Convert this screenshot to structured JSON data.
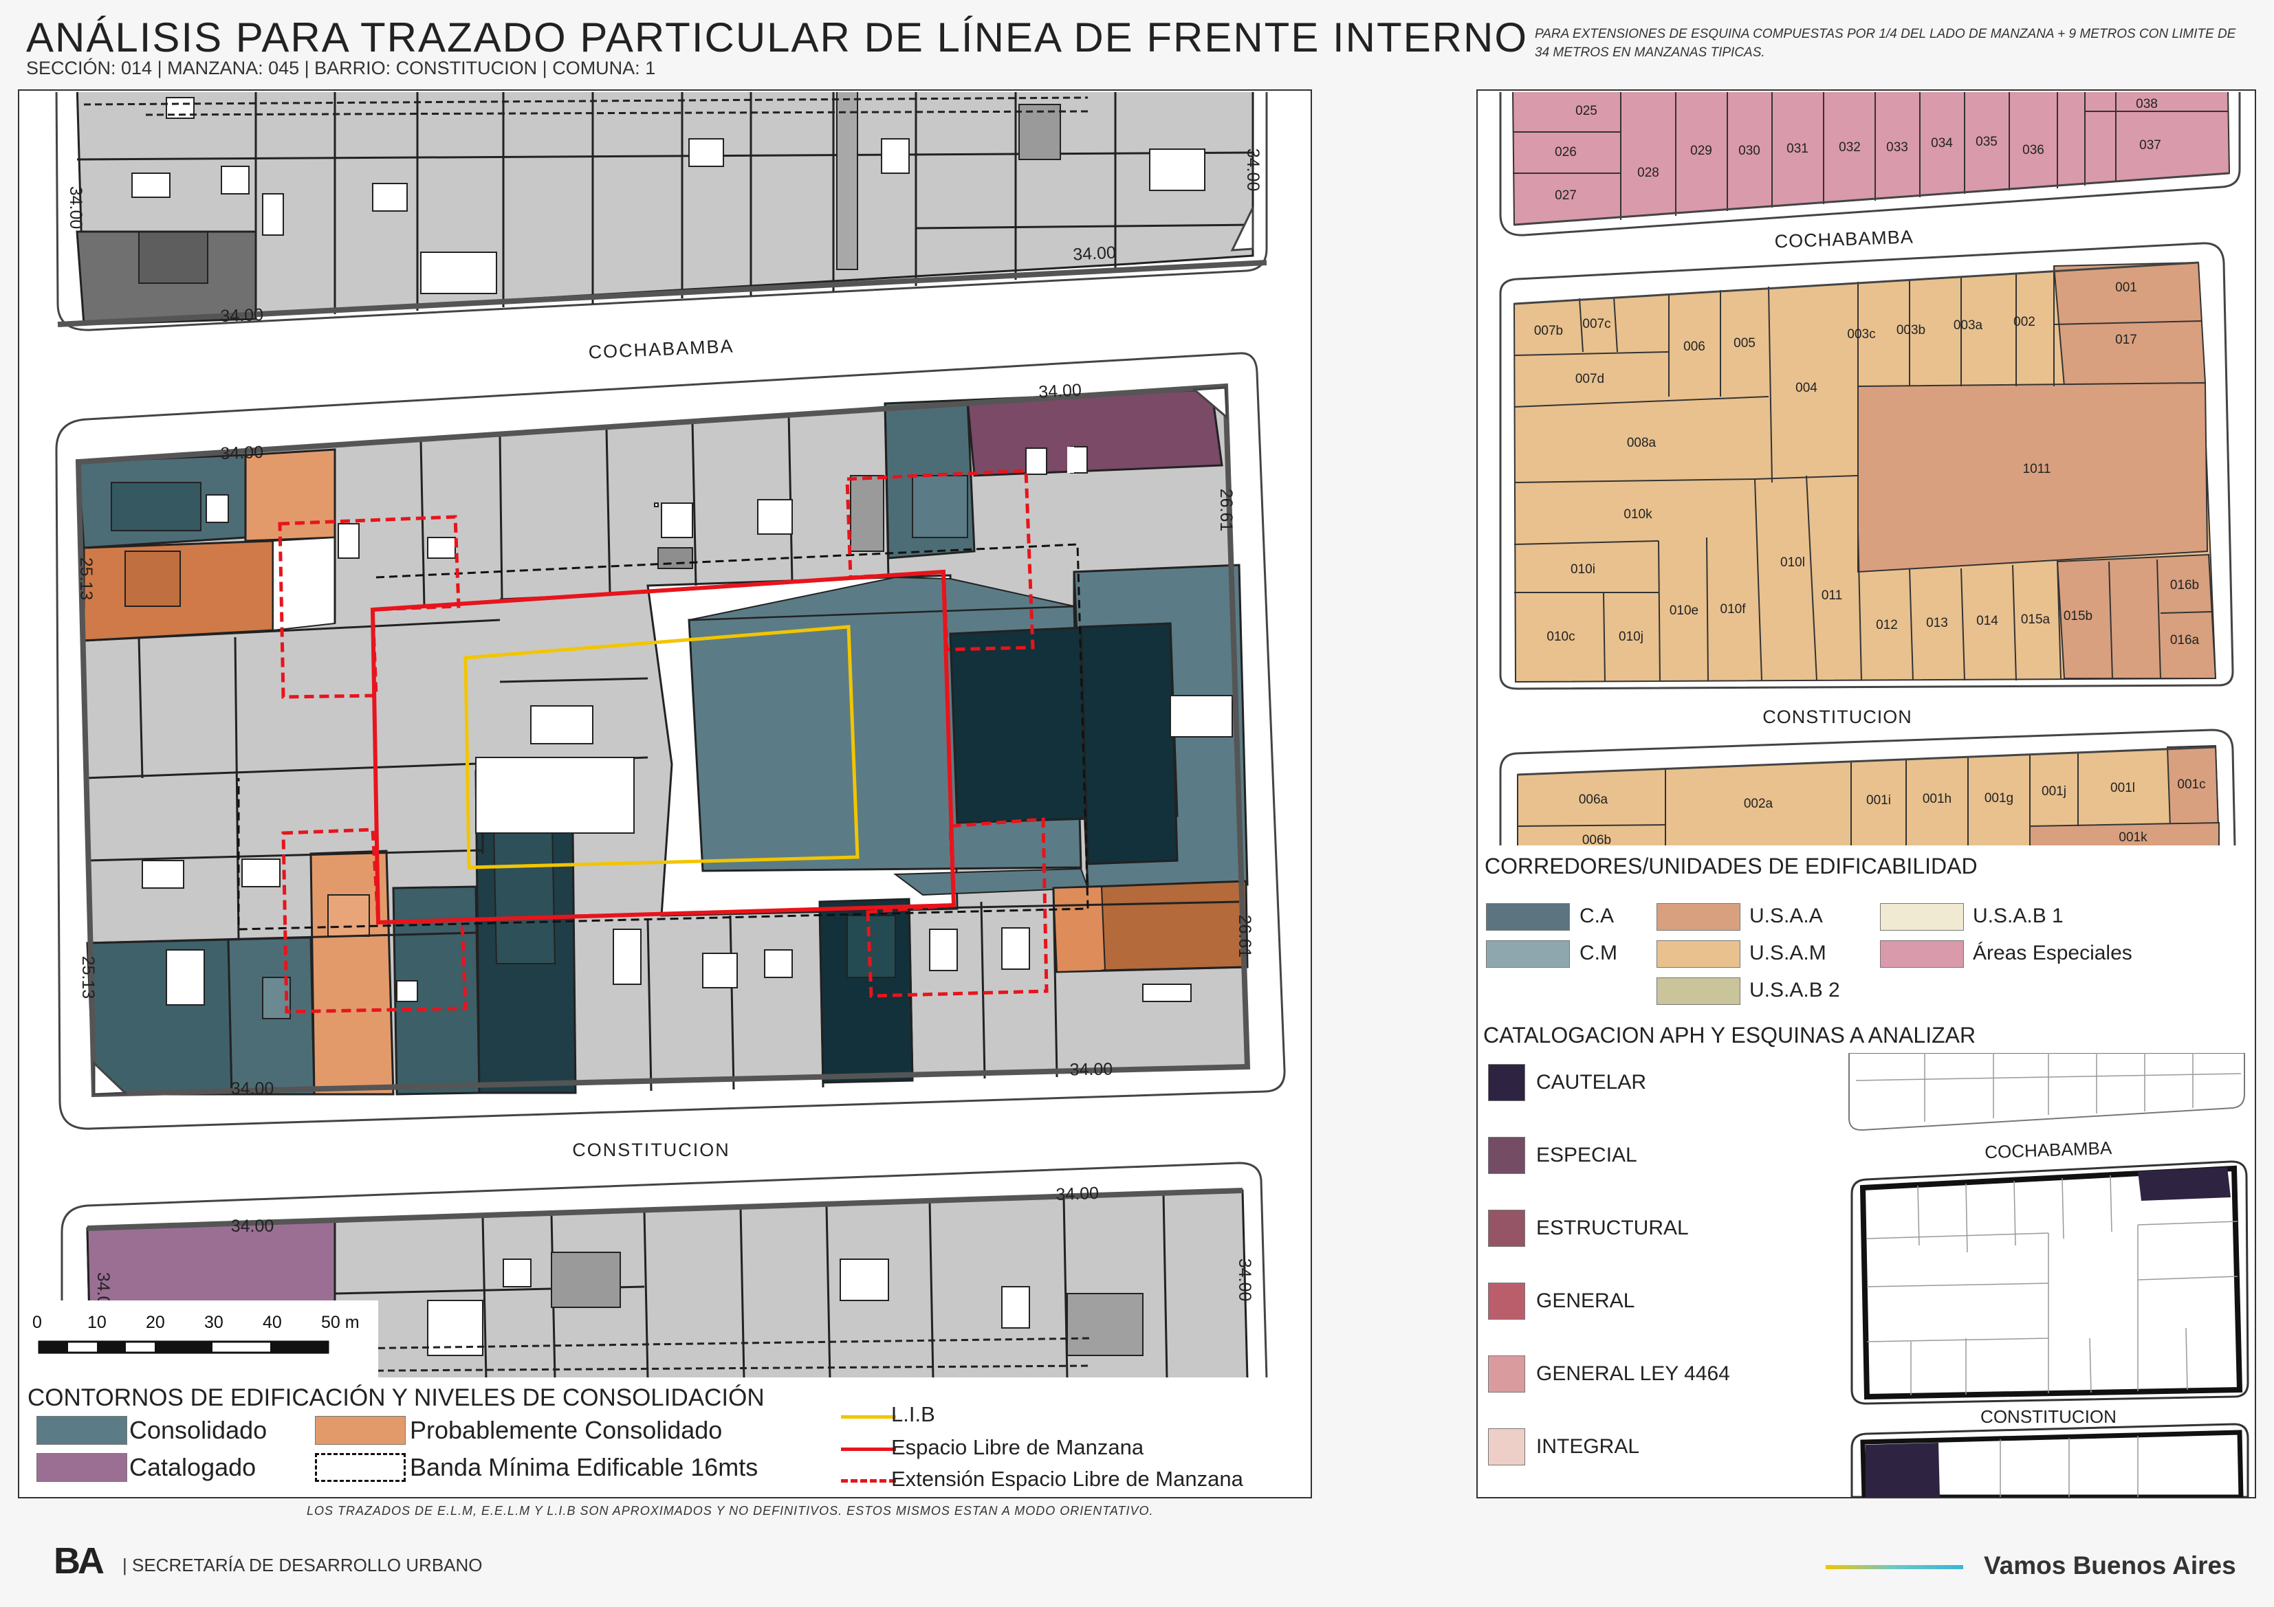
{
  "header": {
    "title": "ANÁLISIS PARA TRAZADO PARTICULAR DE LÍNEA DE FRENTE INTERNO",
    "subtitle": "SECCIÓN: 014 |  MANZANA: 045 | BARRIO: CONSTITUCION | COMUNA: 1",
    "note": "PARA EXTENSIONES DE ESQUINA COMPUESTAS POR 1/4 DEL LADO DE MANZANA + 9 METROS CON LIMITE DE 34 METROS EN MANZANAS TIPICAS."
  },
  "main_map": {
    "streets": {
      "top": "COCHABAMBA",
      "bottom": "CONSTITUCION"
    },
    "dimensions": {
      "d1": "34.00",
      "d2": "34.00",
      "d3": "34.00",
      "d4": "34.00",
      "d5": "34.00",
      "d6": "34.00",
      "d7": "34.00",
      "d8": "34.00",
      "d9": "34.00",
      "d10": "34.00",
      "d11": "34.00",
      "side_left_1": "25.13",
      "side_left_2": "25.13",
      "side_right_1": "26.61",
      "side_right_2": "26.61",
      "side_left_top": "34.00"
    },
    "scale": {
      "labels": [
        "0",
        "10",
        "20",
        "30",
        "40",
        "50 m"
      ]
    }
  },
  "legend_consolidacion": {
    "title": "CONTORNOS DE EDIFICACIÓN Y NIVELES DE CONSOLIDACIÓN",
    "items": [
      {
        "label": "Consolidado",
        "color": "#5b7c86"
      },
      {
        "label": "Probablemente Consolidado",
        "color": "#e39a6b"
      },
      {
        "label": "Catalogado",
        "color": "#9b6f93"
      },
      {
        "label": "Banda Mínima Edificable 16mts",
        "color": "#000000"
      }
    ],
    "lines": [
      {
        "label": "L.I.B",
        "color": "#f2c500"
      },
      {
        "label": "Espacio Libre de Manzana",
        "color": "#e8141c"
      },
      {
        "label": "Extensión Espacio Libre de Manzana",
        "color": "#e8141c"
      }
    ]
  },
  "footer": {
    "note": "LOS TRAZADOS DE E.L.M, E.E.L.M Y L.I.B SON APROXIMADOS Y NO DEFINITIVOS. ESTOS MISMOS ESTAN A MODO ORIENTATIVO.",
    "secretaria": "| SECRETARÍA DE DESARROLLO URBANO",
    "logo": "BA",
    "brand": "Vamos Buenos Aires"
  },
  "parcel_map": {
    "streets": {
      "top": "COCHABAMBA",
      "bottom": "CONSTITUCION"
    },
    "top_block": [
      "025",
      "026",
      "027",
      "028",
      "029",
      "030",
      "031",
      "032",
      "033",
      "034",
      "035",
      "036",
      "037",
      "038"
    ],
    "mid_block": [
      "007b",
      "007c",
      "006",
      "005",
      "004",
      "003c",
      "003b",
      "003a",
      "002",
      "001",
      "017",
      "007d",
      "008a",
      "1011",
      "010k",
      "010l",
      "010i",
      "011",
      "012",
      "013",
      "014",
      "015a",
      "015b",
      "016b",
      "016a",
      "010c",
      "010j",
      "010e",
      "010f"
    ],
    "bottom_block": [
      "006a",
      "002a",
      "001i",
      "001h",
      "001g",
      "001j",
      "001l",
      "001c",
      "006b",
      "001k"
    ]
  },
  "legend_corredores": {
    "title": "CORREDORES/UNIDADES DE EDIFICABILIDAD",
    "items": [
      {
        "label": "C.A",
        "color": "#5c7480"
      },
      {
        "label": "C.M",
        "color": "#8ea7ae"
      },
      {
        "label": "U.S.A.A",
        "color": "#d8a07f"
      },
      {
        "label": "U.S.A.M",
        "color": "#e8c18f"
      },
      {
        "label": "U.S.A.B 2",
        "color": "#c9c49a"
      },
      {
        "label": "U.S.A.B 1",
        "color": "#f0ead2"
      },
      {
        "label": "Áreas Especiales",
        "color": "#d99aab"
      }
    ]
  },
  "legend_catalogacion": {
    "title": "CATALOGACION APH Y ESQUINAS A ANALIZAR",
    "items": [
      {
        "label": "CAUTELAR",
        "color": "#2e2340"
      },
      {
        "label": "ESPECIAL",
        "color": "#744c64"
      },
      {
        "label": "ESTRUCTURAL",
        "color": "#955566"
      },
      {
        "label": "GENERAL",
        "color": "#bb5e6c"
      },
      {
        "label": "GENERAL LEY 4464",
        "color": "#d99b9e"
      },
      {
        "label": "INTEGRAL",
        "color": "#edcfc8"
      }
    ],
    "mini_streets": {
      "top": "COCHABAMBA",
      "bottom": "CONSTITUCION"
    }
  }
}
